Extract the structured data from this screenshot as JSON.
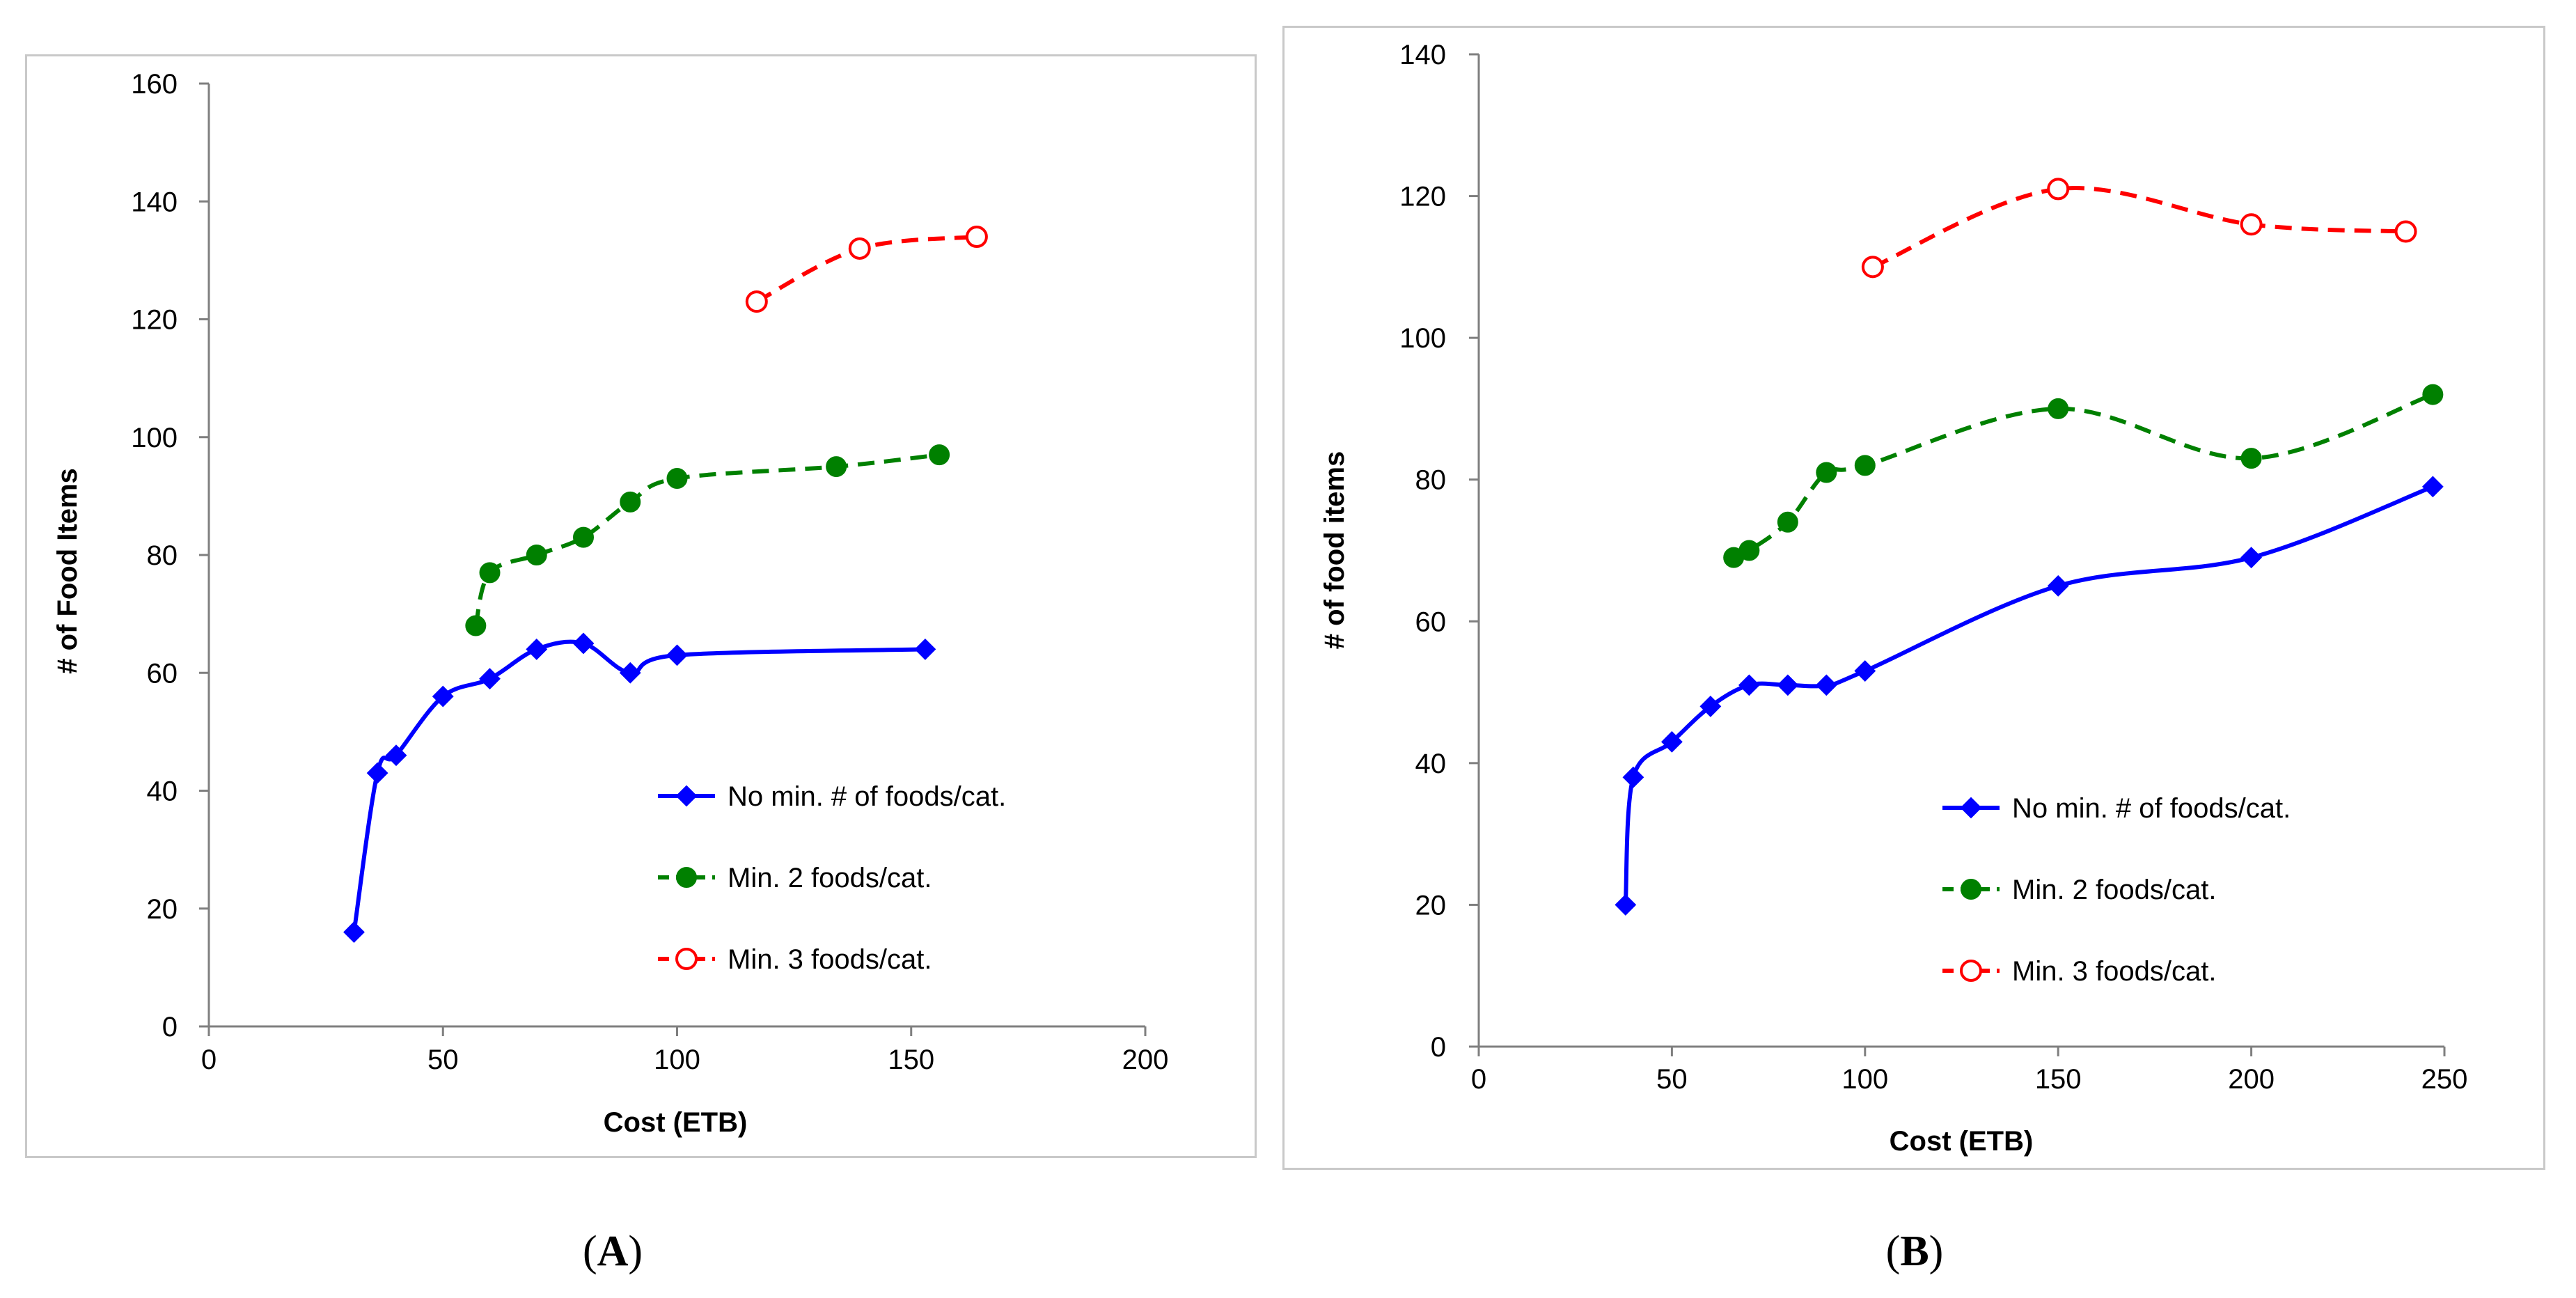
{
  "panels": {
    "a_label": "A",
    "b_label": "B"
  },
  "chart_data": [
    {
      "id": "A",
      "type": "line",
      "title": "",
      "xlabel": "Cost (ETB)",
      "ylabel": "# of Food Items",
      "xlim": [
        0,
        200
      ],
      "ylim": [
        0,
        160
      ],
      "xticks": [
        0,
        50,
        100,
        150,
        200
      ],
      "yticks": [
        0,
        20,
        40,
        60,
        80,
        100,
        120,
        140,
        160
      ],
      "grid": false,
      "legend_position": "bottom-right",
      "series": [
        {
          "name": "No min. # of foods/cat.",
          "color": "#0000ff",
          "marker": "diamond",
          "dash": "solid",
          "x": [
            31,
            36,
            40,
            50,
            60,
            70,
            80,
            90,
            100,
            153
          ],
          "y": [
            16,
            43,
            46,
            56,
            59,
            64,
            65,
            60,
            63,
            64
          ]
        },
        {
          "name": "Min. 2 foods/cat.",
          "color": "#008000",
          "marker": "filled-circle",
          "dash": "dashed",
          "x": [
            57,
            60,
            70,
            80,
            90,
            100,
            134,
            156
          ],
          "y": [
            68,
            77,
            80,
            83,
            89,
            93,
            95,
            97
          ]
        },
        {
          "name": "Min. 3 foods/cat.",
          "color": "#ff0000",
          "marker": "open-circle",
          "dash": "dashed",
          "x": [
            117,
            139,
            164
          ],
          "y": [
            123,
            132,
            134
          ]
        }
      ]
    },
    {
      "id": "B",
      "type": "line",
      "title": "",
      "xlabel": "Cost (ETB)",
      "ylabel": "# of food items",
      "xlim": [
        0,
        250
      ],
      "ylim": [
        0,
        140
      ],
      "xticks": [
        0,
        50,
        100,
        150,
        200,
        250
      ],
      "yticks": [
        0,
        20,
        40,
        60,
        80,
        100,
        120,
        140
      ],
      "grid": false,
      "legend_position": "bottom-right",
      "series": [
        {
          "name": "No min. # of foods/cat.",
          "color": "#0000ff",
          "marker": "diamond",
          "dash": "solid",
          "x": [
            38,
            40,
            50,
            60,
            70,
            80,
            90,
            100,
            150,
            200,
            247
          ],
          "y": [
            20,
            38,
            43,
            48,
            51,
            51,
            51,
            53,
            65,
            69,
            79
          ]
        },
        {
          "name": "Min. 2 foods/cat.",
          "color": "#008000",
          "marker": "filled-circle",
          "dash": "dashed",
          "x": [
            66,
            70,
            80,
            90,
            100,
            150,
            200,
            247
          ],
          "y": [
            69,
            70,
            74,
            81,
            82,
            90,
            83,
            92
          ]
        },
        {
          "name": "Min. 3 foods/cat.",
          "color": "#ff0000",
          "marker": "open-circle",
          "dash": "dashed",
          "x": [
            102,
            150,
            200,
            240
          ],
          "y": [
            110,
            121,
            116,
            115
          ]
        }
      ]
    }
  ]
}
